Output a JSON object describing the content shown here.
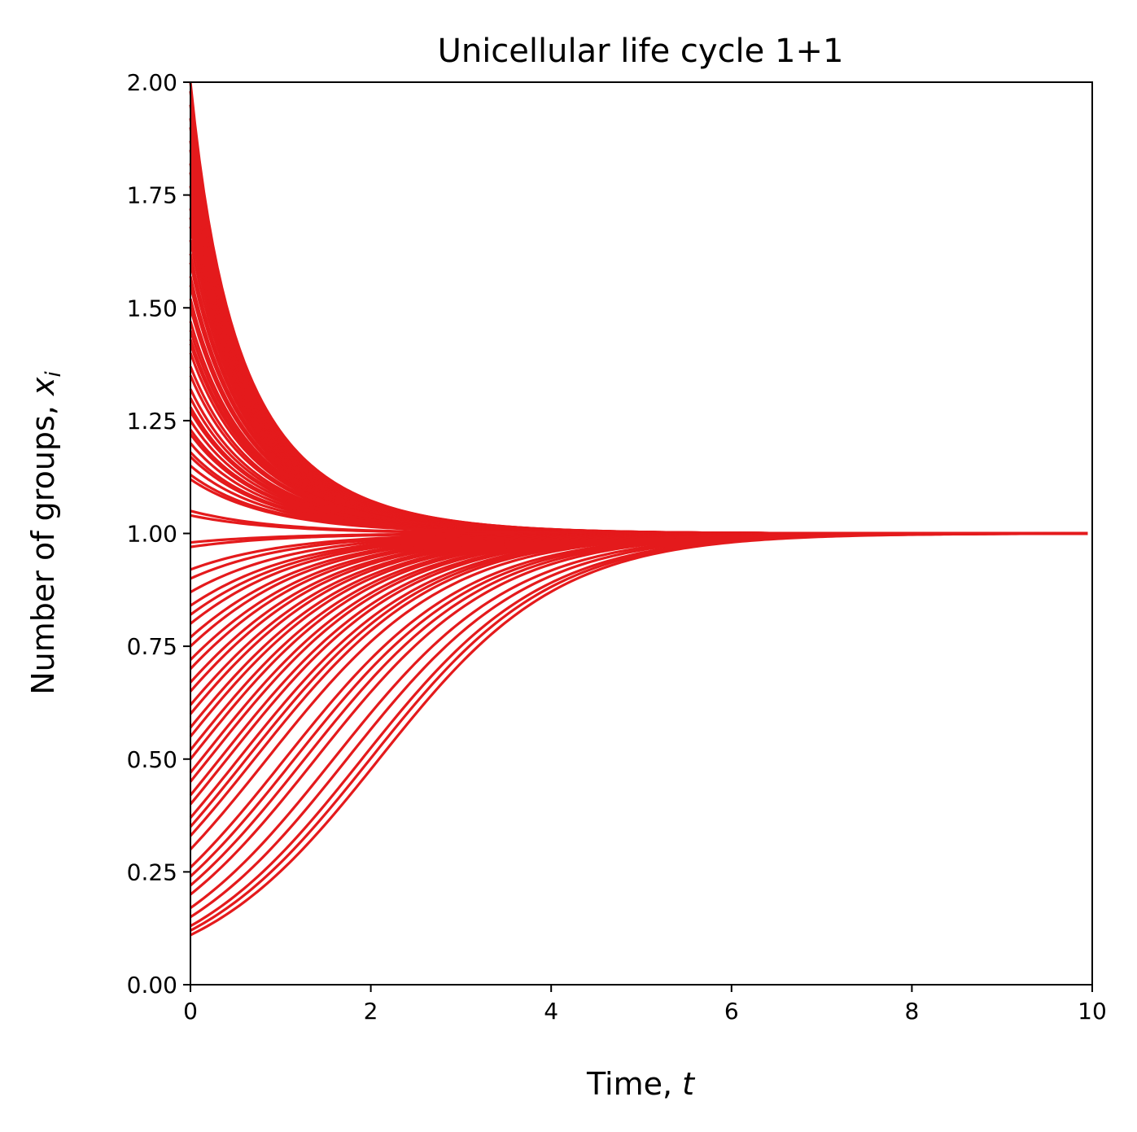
{
  "chart_data": {
    "type": "line",
    "title": "Unicellular life cycle 1+1",
    "xlabel": {
      "text": "Time, ",
      "var": "t"
    },
    "ylabel": {
      "text": "Number of groups, ",
      "var": "x",
      "sub": "i"
    },
    "xlim": [
      0,
      10
    ],
    "ylim": [
      0,
      2
    ],
    "xticks": [
      0,
      2,
      4,
      6,
      8,
      10
    ],
    "xtick_labels": [
      "0",
      "2",
      "4",
      "6",
      "8",
      "10"
    ],
    "yticks": [
      0,
      0.25,
      0.5,
      0.75,
      1.0,
      1.25,
      1.5,
      1.75,
      2.0
    ],
    "ytick_labels": [
      "0.00",
      "0.25",
      "0.50",
      "0.75",
      "1.00",
      "1.25",
      "1.50",
      "1.75",
      "2.00"
    ],
    "grid": false,
    "legend": false,
    "line_color": "#e41a1c",
    "equilibrium": 1.0,
    "series_model": "logistic growth x(t) = x0 / (x0 + (1 - x0) * exp(-r t)), r = 1",
    "x": [
      0,
      0.5,
      1,
      1.5,
      2,
      2.5,
      3,
      3.5,
      4,
      4.5,
      5,
      5.5,
      6,
      7,
      8,
      10
    ],
    "series_initial_values": [
      2.0,
      1.98,
      1.95,
      1.92,
      1.9,
      1.87,
      1.85,
      1.82,
      1.8,
      1.77,
      1.75,
      1.72,
      1.7,
      1.68,
      1.65,
      1.62,
      1.6,
      1.57,
      1.55,
      1.52,
      1.5,
      1.47,
      1.45,
      1.43,
      1.42,
      1.4,
      1.37,
      1.35,
      1.32,
      1.3,
      1.28,
      1.27,
      1.25,
      1.23,
      1.22,
      1.2,
      1.18,
      1.17,
      1.15,
      1.13,
      1.12,
      1.05,
      1.04,
      0.98,
      0.97,
      0.92,
      0.9,
      0.87,
      0.84,
      0.82,
      0.8,
      0.77,
      0.75,
      0.72,
      0.7,
      0.67,
      0.65,
      0.62,
      0.6,
      0.57,
      0.55,
      0.52,
      0.5,
      0.47,
      0.45,
      0.42,
      0.4,
      0.37,
      0.35,
      0.33,
      0.3,
      0.26,
      0.24,
      0.22,
      0.2,
      0.17,
      0.15,
      0.13,
      0.12,
      0.11
    ]
  }
}
